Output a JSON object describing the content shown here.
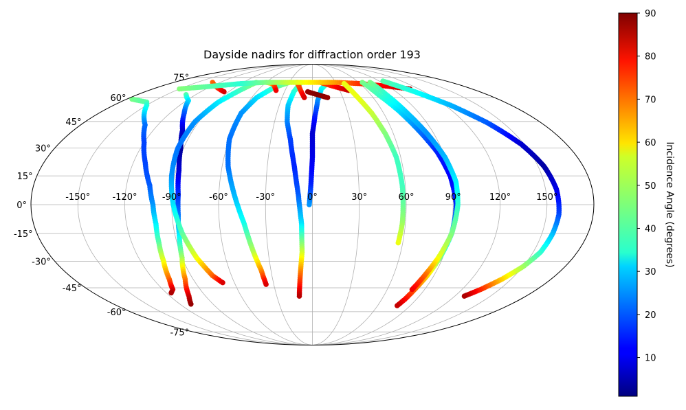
{
  "chart_data": {
    "type": "scatter",
    "title": "Dayside nadirs for diffraction order 193",
    "projection": "mollweide",
    "xlabel": "",
    "ylabel": "",
    "lon_ticks": [
      -150,
      -120,
      -90,
      -60,
      -30,
      0,
      30,
      60,
      90,
      120,
      150
    ],
    "lat_ticks": [
      -75,
      -60,
      -45,
      -30,
      -15,
      0,
      15,
      30,
      45,
      60,
      75
    ],
    "lon_tick_labels": [
      "-150°",
      "-120°",
      "-90°",
      "-60°",
      "-30°",
      "0°",
      "30°",
      "60°",
      "90°",
      "120°",
      "150°"
    ],
    "lat_tick_labels": [
      "-75°",
      "-60°",
      "-45°",
      "-30°",
      "-15°",
      "0°",
      "15°",
      "30°",
      "45°",
      "60°",
      "75°"
    ],
    "grid": true,
    "colorbar": {
      "label": "Incidence Angle (degrees)",
      "colormap": "jet",
      "min": 1,
      "max": 90,
      "ticks": [
        10,
        20,
        30,
        40,
        50,
        60,
        70,
        80,
        90
      ],
      "tick_labels": [
        "10",
        "20",
        "30",
        "40",
        "50",
        "60",
        "70",
        "80",
        "90"
      ]
    },
    "tracks": [
      {
        "pts": [
          [
            -175,
            59,
            45
          ],
          [
            -165,
            58,
            43
          ],
          [
            -155,
            57,
            42
          ],
          [
            -150,
            55,
            38
          ],
          [
            -140,
            49,
            30
          ],
          [
            -130,
            43,
            22
          ],
          [
            -120,
            33,
            18
          ],
          [
            -112,
            22,
            18
          ],
          [
            -105,
            10,
            20
          ],
          [
            -102,
            0,
            25
          ],
          [
            -101,
            -10,
            33
          ],
          [
            -102,
            -20,
            42
          ],
          [
            -104,
            -30,
            55
          ],
          [
            -108,
            -40,
            70
          ],
          [
            -112,
            -46,
            82
          ],
          [
            -116,
            -48,
            86
          ]
        ]
      },
      {
        "pts": [
          [
            -130,
            62,
            42
          ],
          [
            -118,
            58,
            32
          ],
          [
            -108,
            50,
            20
          ],
          [
            -98,
            40,
            8
          ],
          [
            -92,
            30,
            3
          ],
          [
            -88,
            18,
            8
          ],
          [
            -86,
            5,
            16
          ],
          [
            -86,
            -5,
            22
          ],
          [
            -87,
            -15,
            32
          ],
          [
            -90,
            -28,
            48
          ],
          [
            -96,
            -40,
            68
          ],
          [
            -104,
            -50,
            83
          ],
          [
            -110,
            -55,
            88
          ]
        ]
      },
      {
        "pts": [
          [
            -73,
            71,
            48
          ],
          [
            -80,
            65,
            40
          ],
          [
            -88,
            57,
            33
          ],
          [
            -93,
            45,
            25
          ],
          [
            -94,
            30,
            22
          ],
          [
            -92,
            15,
            25
          ],
          [
            -89,
            0,
            32
          ],
          [
            -85,
            -15,
            42
          ],
          [
            -80,
            -28,
            55
          ],
          [
            -74,
            -38,
            70
          ],
          [
            -69,
            -42,
            82
          ]
        ]
      },
      {
        "pts": [
          [
            -30,
            71,
            48
          ],
          [
            -45,
            67,
            40
          ],
          [
            -55,
            60,
            32
          ],
          [
            -60,
            50,
            25
          ],
          [
            -60,
            35,
            22
          ],
          [
            -56,
            20,
            22
          ],
          [
            -50,
            5,
            28
          ],
          [
            -44,
            -10,
            36
          ],
          [
            -40,
            -25,
            50
          ],
          [
            -37,
            -35,
            66
          ],
          [
            -36,
            -43,
            82
          ]
        ]
      },
      {
        "pts": [
          [
            -15,
            71,
            45
          ],
          [
            -20,
            64,
            38
          ],
          [
            -22,
            55,
            30
          ],
          [
            -20,
            45,
            24
          ],
          [
            -16,
            35,
            18
          ],
          [
            -12,
            20,
            15
          ],
          [
            -9,
            5,
            20
          ],
          [
            -7,
            -10,
            32
          ],
          [
            -7,
            -25,
            52
          ],
          [
            -9,
            -38,
            70
          ],
          [
            -11,
            -50,
            85
          ]
        ]
      },
      {
        "pts": [
          [
            20,
            71,
            45
          ],
          [
            10,
            66,
            35
          ],
          [
            5,
            58,
            25
          ],
          [
            2,
            48,
            15
          ],
          [
            0,
            38,
            8
          ],
          [
            0,
            25,
            10
          ],
          [
            -1,
            10,
            15
          ],
          [
            -2,
            0,
            25
          ]
        ]
      },
      {
        "pts": [
          [
            -130,
            71,
            70
          ],
          [
            -115,
            68,
            72
          ],
          [
            -105,
            66,
            76
          ],
          [
            -95,
            64,
            82
          ]
        ]
      },
      {
        "pts": [
          [
            -60,
            71,
            60
          ],
          [
            -50,
            70,
            65
          ],
          [
            -45,
            68,
            72
          ],
          [
            -40,
            65,
            80
          ]
        ]
      },
      {
        "pts": [
          [
            -20,
            71,
            68
          ],
          [
            -16,
            68,
            72
          ],
          [
            -12,
            64,
            76
          ],
          [
            -8,
            60,
            82
          ]
        ]
      },
      {
        "pts": [
          [
            10,
            71,
            70
          ],
          [
            20,
            69,
            75
          ],
          [
            30,
            67,
            80
          ],
          [
            40,
            65,
            84
          ]
        ]
      },
      {
        "pts": [
          [
            -5,
            64,
            88
          ],
          [
            5,
            62,
            90
          ],
          [
            15,
            60,
            88
          ]
        ]
      },
      {
        "pts": [
          [
            -150,
            66,
            46
          ],
          [
            -120,
            68,
            42
          ],
          [
            -90,
            70,
            38
          ],
          [
            -60,
            71,
            45
          ],
          [
            -30,
            71,
            52
          ],
          [
            0,
            71,
            58
          ],
          [
            30,
            71,
            65
          ],
          [
            60,
            70,
            75
          ],
          [
            90,
            68,
            80
          ],
          [
            110,
            66,
            86
          ]
        ]
      },
      {
        "pts": [
          [
            40,
            70,
            55
          ],
          [
            45,
            60,
            55
          ],
          [
            50,
            50,
            52
          ],
          [
            54,
            38,
            46
          ],
          [
            57,
            25,
            40
          ],
          [
            58,
            10,
            40
          ],
          [
            58,
            0,
            43
          ],
          [
            58,
            -10,
            48
          ],
          [
            57,
            -20,
            55
          ]
        ]
      },
      {
        "pts": [
          [
            65,
            71,
            45
          ],
          [
            68,
            62,
            40
          ],
          [
            74,
            52,
            32
          ],
          [
            80,
            40,
            23
          ],
          [
            86,
            28,
            15
          ],
          [
            90,
            15,
            12
          ],
          [
            92,
            0,
            15
          ],
          [
            91,
            -15,
            28
          ],
          [
            88,
            -28,
            45
          ],
          [
            85,
            -38,
            60
          ],
          [
            82,
            -46,
            70
          ],
          [
            80,
            -52,
            78
          ],
          [
            78,
            -56,
            84
          ]
        ]
      },
      {
        "pts": [
          [
            75,
            71,
            45
          ],
          [
            76,
            62,
            38
          ],
          [
            80,
            50,
            30
          ],
          [
            85,
            38,
            25
          ],
          [
            90,
            25,
            28
          ],
          [
            93,
            12,
            33
          ],
          [
            93,
            0,
            38
          ],
          [
            91,
            -15,
            45
          ],
          [
            87,
            -28,
            55
          ],
          [
            83,
            -38,
            70
          ],
          [
            80,
            -46,
            80
          ]
        ]
      },
      {
        "pts": [
          [
            95,
            72,
            42
          ],
          [
            110,
            64,
            36
          ],
          [
            125,
            55,
            28
          ],
          [
            138,
            44,
            20
          ],
          [
            148,
            32,
            8
          ],
          [
            154,
            20,
            4
          ],
          [
            157,
            8,
            10
          ],
          [
            158,
            -5,
            18
          ],
          [
            157,
            -15,
            28
          ],
          [
            155,
            -25,
            38
          ],
          [
            150,
            -33,
            48
          ],
          [
            143,
            -40,
            60
          ],
          [
            135,
            -46,
            75
          ],
          [
            128,
            -50,
            86
          ]
        ]
      }
    ]
  }
}
